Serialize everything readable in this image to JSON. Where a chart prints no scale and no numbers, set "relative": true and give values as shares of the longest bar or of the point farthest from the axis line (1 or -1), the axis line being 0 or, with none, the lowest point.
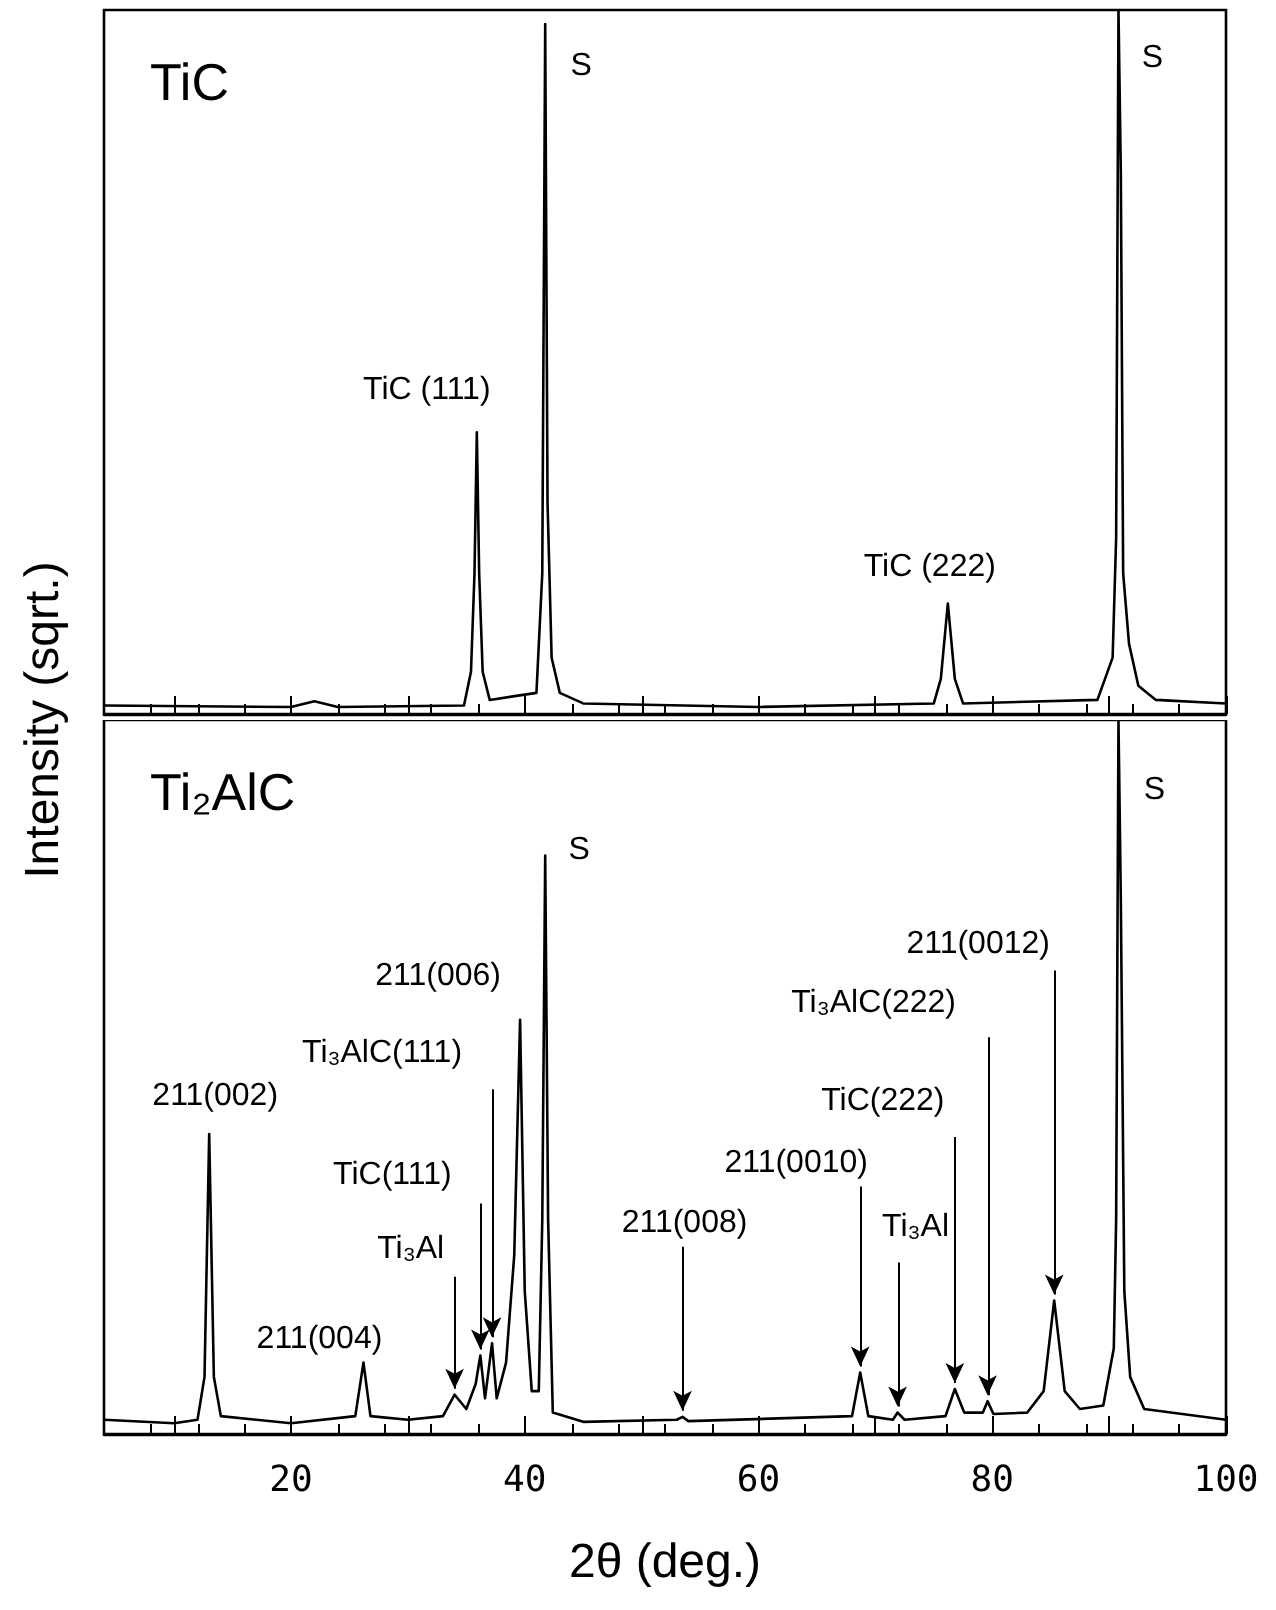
{
  "chart_data": [
    {
      "type": "line",
      "title": "TiC",
      "ylabel": "Intensity (sqrt.)",
      "relative": true,
      "tick_labels": false,
      "xlim": [
        4,
        100
      ],
      "xticks": [
        10,
        20,
        30,
        40,
        50,
        60,
        70,
        80,
        90,
        100
      ],
      "series": [
        {
          "color": "#000000",
          "x": [
            4,
            20,
            22,
            24,
            34.8,
            35.4,
            35.7,
            35.9,
            36.1,
            36.4,
            37,
            41,
            41.5,
            41.75,
            41.95,
            42.3,
            43,
            45,
            60,
            75,
            75.6,
            76.2,
            76.8,
            77.5,
            89,
            90.3,
            90.6,
            90.8,
            91,
            91.2,
            91.7,
            92.5,
            94,
            100
          ],
          "values": [
            0.012,
            0.01,
            0.018,
            0.01,
            0.012,
            0.06,
            0.2,
            0.4,
            0.2,
            0.06,
            0.02,
            0.03,
            0.2,
            0.98,
            0.3,
            0.08,
            0.03,
            0.015,
            0.01,
            0.015,
            0.05,
            0.157,
            0.05,
            0.015,
            0.02,
            0.08,
            0.25,
            1,
            0.77,
            0.2,
            0.1,
            0.04,
            0.02,
            0.015
          ]
        }
      ],
      "annotations": [
        {
          "text": "TiC (111)",
          "x": 35.9,
          "y": 0.4
        },
        {
          "text": "S",
          "x": 41.75,
          "y": 0.98
        },
        {
          "text": "TiC (222)",
          "x": 76.2,
          "y": 0.157
        },
        {
          "text": "S",
          "x": 90.8,
          "y": 1
        }
      ]
    },
    {
      "type": "line",
      "title": "Ti₂AlC",
      "xlabel": "2θ (deg.)",
      "relative": true,
      "xlim": [
        4,
        100
      ],
      "xticks": [
        {
          "value": 10,
          "label": null
        },
        20,
        {
          "value": 30,
          "label": null
        },
        40,
        {
          "value": 50,
          "label": null
        },
        60,
        {
          "value": 70,
          "label": null
        },
        80,
        {
          "value": 90,
          "label": null
        },
        100
      ],
      "series": [
        {
          "color": "#000000",
          "x": [
            4,
            10,
            12,
            12.6,
            13.0,
            13.4,
            14,
            20,
            25.5,
            26.2,
            26.8,
            30,
            33,
            34.0,
            35,
            35.8,
            36.2,
            36.6,
            37.2,
            37.6,
            38.4,
            39.1,
            39.6,
            40.0,
            40.6,
            41.2,
            41.5,
            41.75,
            42,
            42.4,
            45,
            53,
            53.5,
            54,
            68,
            68.7,
            69.4,
            71.5,
            71.9,
            72.5,
            76,
            76.8,
            77.6,
            79.2,
            79.6,
            80.1,
            83,
            84.4,
            85.3,
            86.2,
            87.5,
            89.5,
            90.4,
            90.6,
            90.8,
            91,
            91.3,
            91.8,
            93,
            100
          ],
          "values": [
            0.02,
            0.015,
            0.02,
            0.08,
            0.42,
            0.08,
            0.025,
            0.015,
            0.025,
            0.1,
            0.025,
            0.02,
            0.025,
            0.055,
            0.035,
            0.07,
            0.11,
            0.05,
            0.127,
            0.05,
            0.1,
            0.25,
            0.58,
            0.2,
            0.06,
            0.06,
            0.3,
            0.81,
            0.3,
            0.03,
            0.017,
            0.02,
            0.024,
            0.018,
            0.025,
            0.086,
            0.025,
            0.02,
            0.03,
            0.02,
            0.025,
            0.063,
            0.03,
            0.03,
            0.046,
            0.028,
            0.03,
            0.06,
            0.187,
            0.06,
            0.035,
            0.04,
            0.12,
            0.3,
            1,
            0.75,
            0.2,
            0.08,
            0.035,
            0.02
          ]
        }
      ],
      "annotations": [
        {
          "text": "211(002)",
          "x": 13.0,
          "y": 0.42
        },
        {
          "text": "211(004)",
          "x": 26.2,
          "y": 0.1
        },
        {
          "text": "Ti₃Al",
          "x": 34.0,
          "y": 0.055
        },
        {
          "text": "TiC(111)",
          "x": 36.2,
          "y": 0.11
        },
        {
          "text": "Ti₃AlC(111)",
          "x": 37.2,
          "y": 0.127
        },
        {
          "text": "211(006)",
          "x": 39.6,
          "y": 0.58
        },
        {
          "text": "S",
          "x": 41.75,
          "y": 0.81
        },
        {
          "text": "211(008)",
          "x": 53.5,
          "y": 0.024
        },
        {
          "text": "211(0010)",
          "x": 68.7,
          "y": 0.086
        },
        {
          "text": "Ti₃Al",
          "x": 71.9,
          "y": 0.03
        },
        {
          "text": "TiC(222)",
          "x": 76.8,
          "y": 0.063
        },
        {
          "text": "Ti₃AlC(222)",
          "x": 79.6,
          "y": 0.046
        },
        {
          "text": "211(0012)",
          "x": 85.3,
          "y": 0.187
        },
        {
          "text": "S",
          "x": 90.8,
          "y": 1
        }
      ]
    }
  ]
}
